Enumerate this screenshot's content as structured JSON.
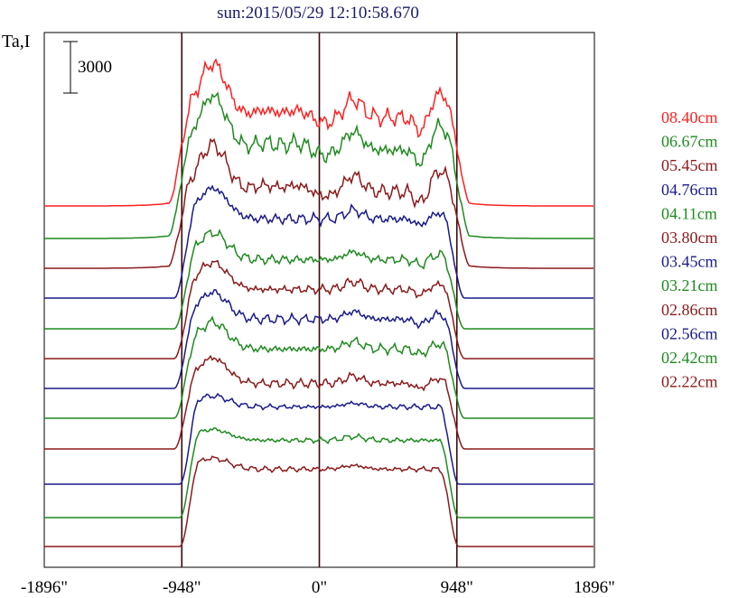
{
  "chart_data": {
    "type": "line",
    "title": "sun:2015/05/29 12:10:58.670",
    "ylabel": "Ta,I",
    "xlabel": "",
    "x_ticks": [
      "-1896\"",
      "-948\"",
      "0\"",
      "948\"",
      "1896\""
    ],
    "x_tick_values": [
      -1896,
      -948,
      0,
      948,
      1896
    ],
    "xlim": [
      -1896,
      1896
    ],
    "vertical_lines_at": [
      -948,
      0,
      948
    ],
    "scale_bar": {
      "label": "3000",
      "value": 3000
    },
    "grid": false,
    "legend_placement": "right",
    "series": [
      {
        "name": "08.40cm",
        "color": "#ff2020",
        "shape": "A",
        "amp": 8300
      },
      {
        "name": "06.67cm",
        "color": "#1f8a1f",
        "shape": "A",
        "amp": 8300
      },
      {
        "name": "05.45cm",
        "color": "#8b1a1a",
        "shape": "A",
        "amp": 7200
      },
      {
        "name": "04.76cm",
        "color": "#1a1a8b",
        "shape": "B",
        "amp": 6400
      },
      {
        "name": "04.11cm",
        "color": "#1f8a1f",
        "shape": "B",
        "amp": 5600
      },
      {
        "name": "03.80cm",
        "color": "#8b1a1a",
        "shape": "B",
        "amp": 5600
      },
      {
        "name": "03.45cm",
        "color": "#1a1a8b",
        "shape": "B",
        "amp": 5600
      },
      {
        "name": "03.21cm",
        "color": "#1f8a1f",
        "shape": "B",
        "amp": 5600
      },
      {
        "name": "02.86cm",
        "color": "#8b1a1a",
        "shape": "B",
        "amp": 5300
      },
      {
        "name": "02.56cm",
        "color": "#1a1a8b",
        "shape": "C",
        "amp": 5300
      },
      {
        "name": "02.42cm",
        "color": "#1f8a1f",
        "shape": "C",
        "amp": 5300
      },
      {
        "name": "02.22cm",
        "color": "#8b1a1a",
        "shape": "C",
        "amp": 5300
      }
    ]
  }
}
